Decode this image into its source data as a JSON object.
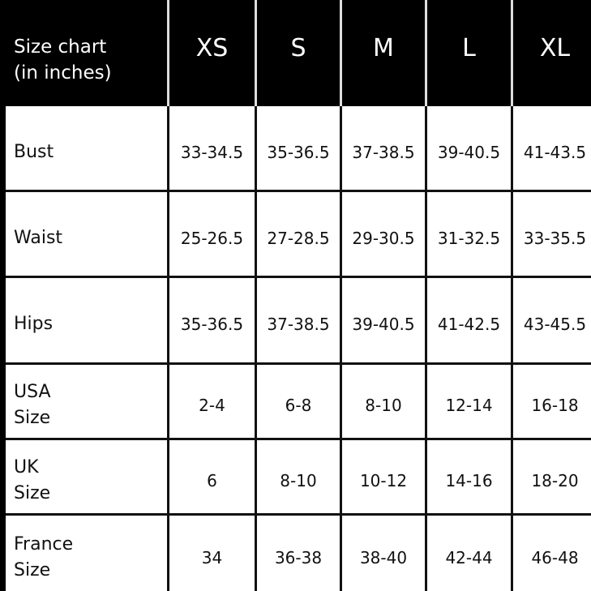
{
  "header": {
    "title_line1": "Size chart",
    "title_line2": "(in inches)",
    "sizes": [
      "XS",
      "S",
      "M",
      "L",
      "XL"
    ]
  },
  "rows": [
    {
      "label_line1": "Bust",
      "label_line2": "",
      "values": [
        "33-34.5",
        "35-36.5",
        "37-38.5",
        "39-40.5",
        "41-43.5"
      ]
    },
    {
      "label_line1": "Waist",
      "label_line2": "",
      "values": [
        "25-26.5",
        "27-28.5",
        "29-30.5",
        "31-32.5",
        "33-35.5"
      ]
    },
    {
      "label_line1": "Hips",
      "label_line2": "",
      "values": [
        "35-36.5",
        "37-38.5",
        "39-40.5",
        "41-42.5",
        "43-45.5"
      ]
    },
    {
      "label_line1": "USA",
      "label_line2": "Size",
      "values": [
        "2-4",
        "6-8",
        "8-10",
        "12-14",
        "16-18"
      ]
    },
    {
      "label_line1": "UK",
      "label_line2": "Size",
      "values": [
        "6",
        "8-10",
        "10-12",
        "14-16",
        "18-20"
      ]
    },
    {
      "label_line1": "France",
      "label_line2": "Size",
      "values": [
        "34",
        "36-38",
        "38-40",
        "42-44",
        "46-48"
      ]
    }
  ],
  "colors": {
    "header_bg": "#000000",
    "header_text": "#ffffff",
    "grid": "#111111"
  }
}
